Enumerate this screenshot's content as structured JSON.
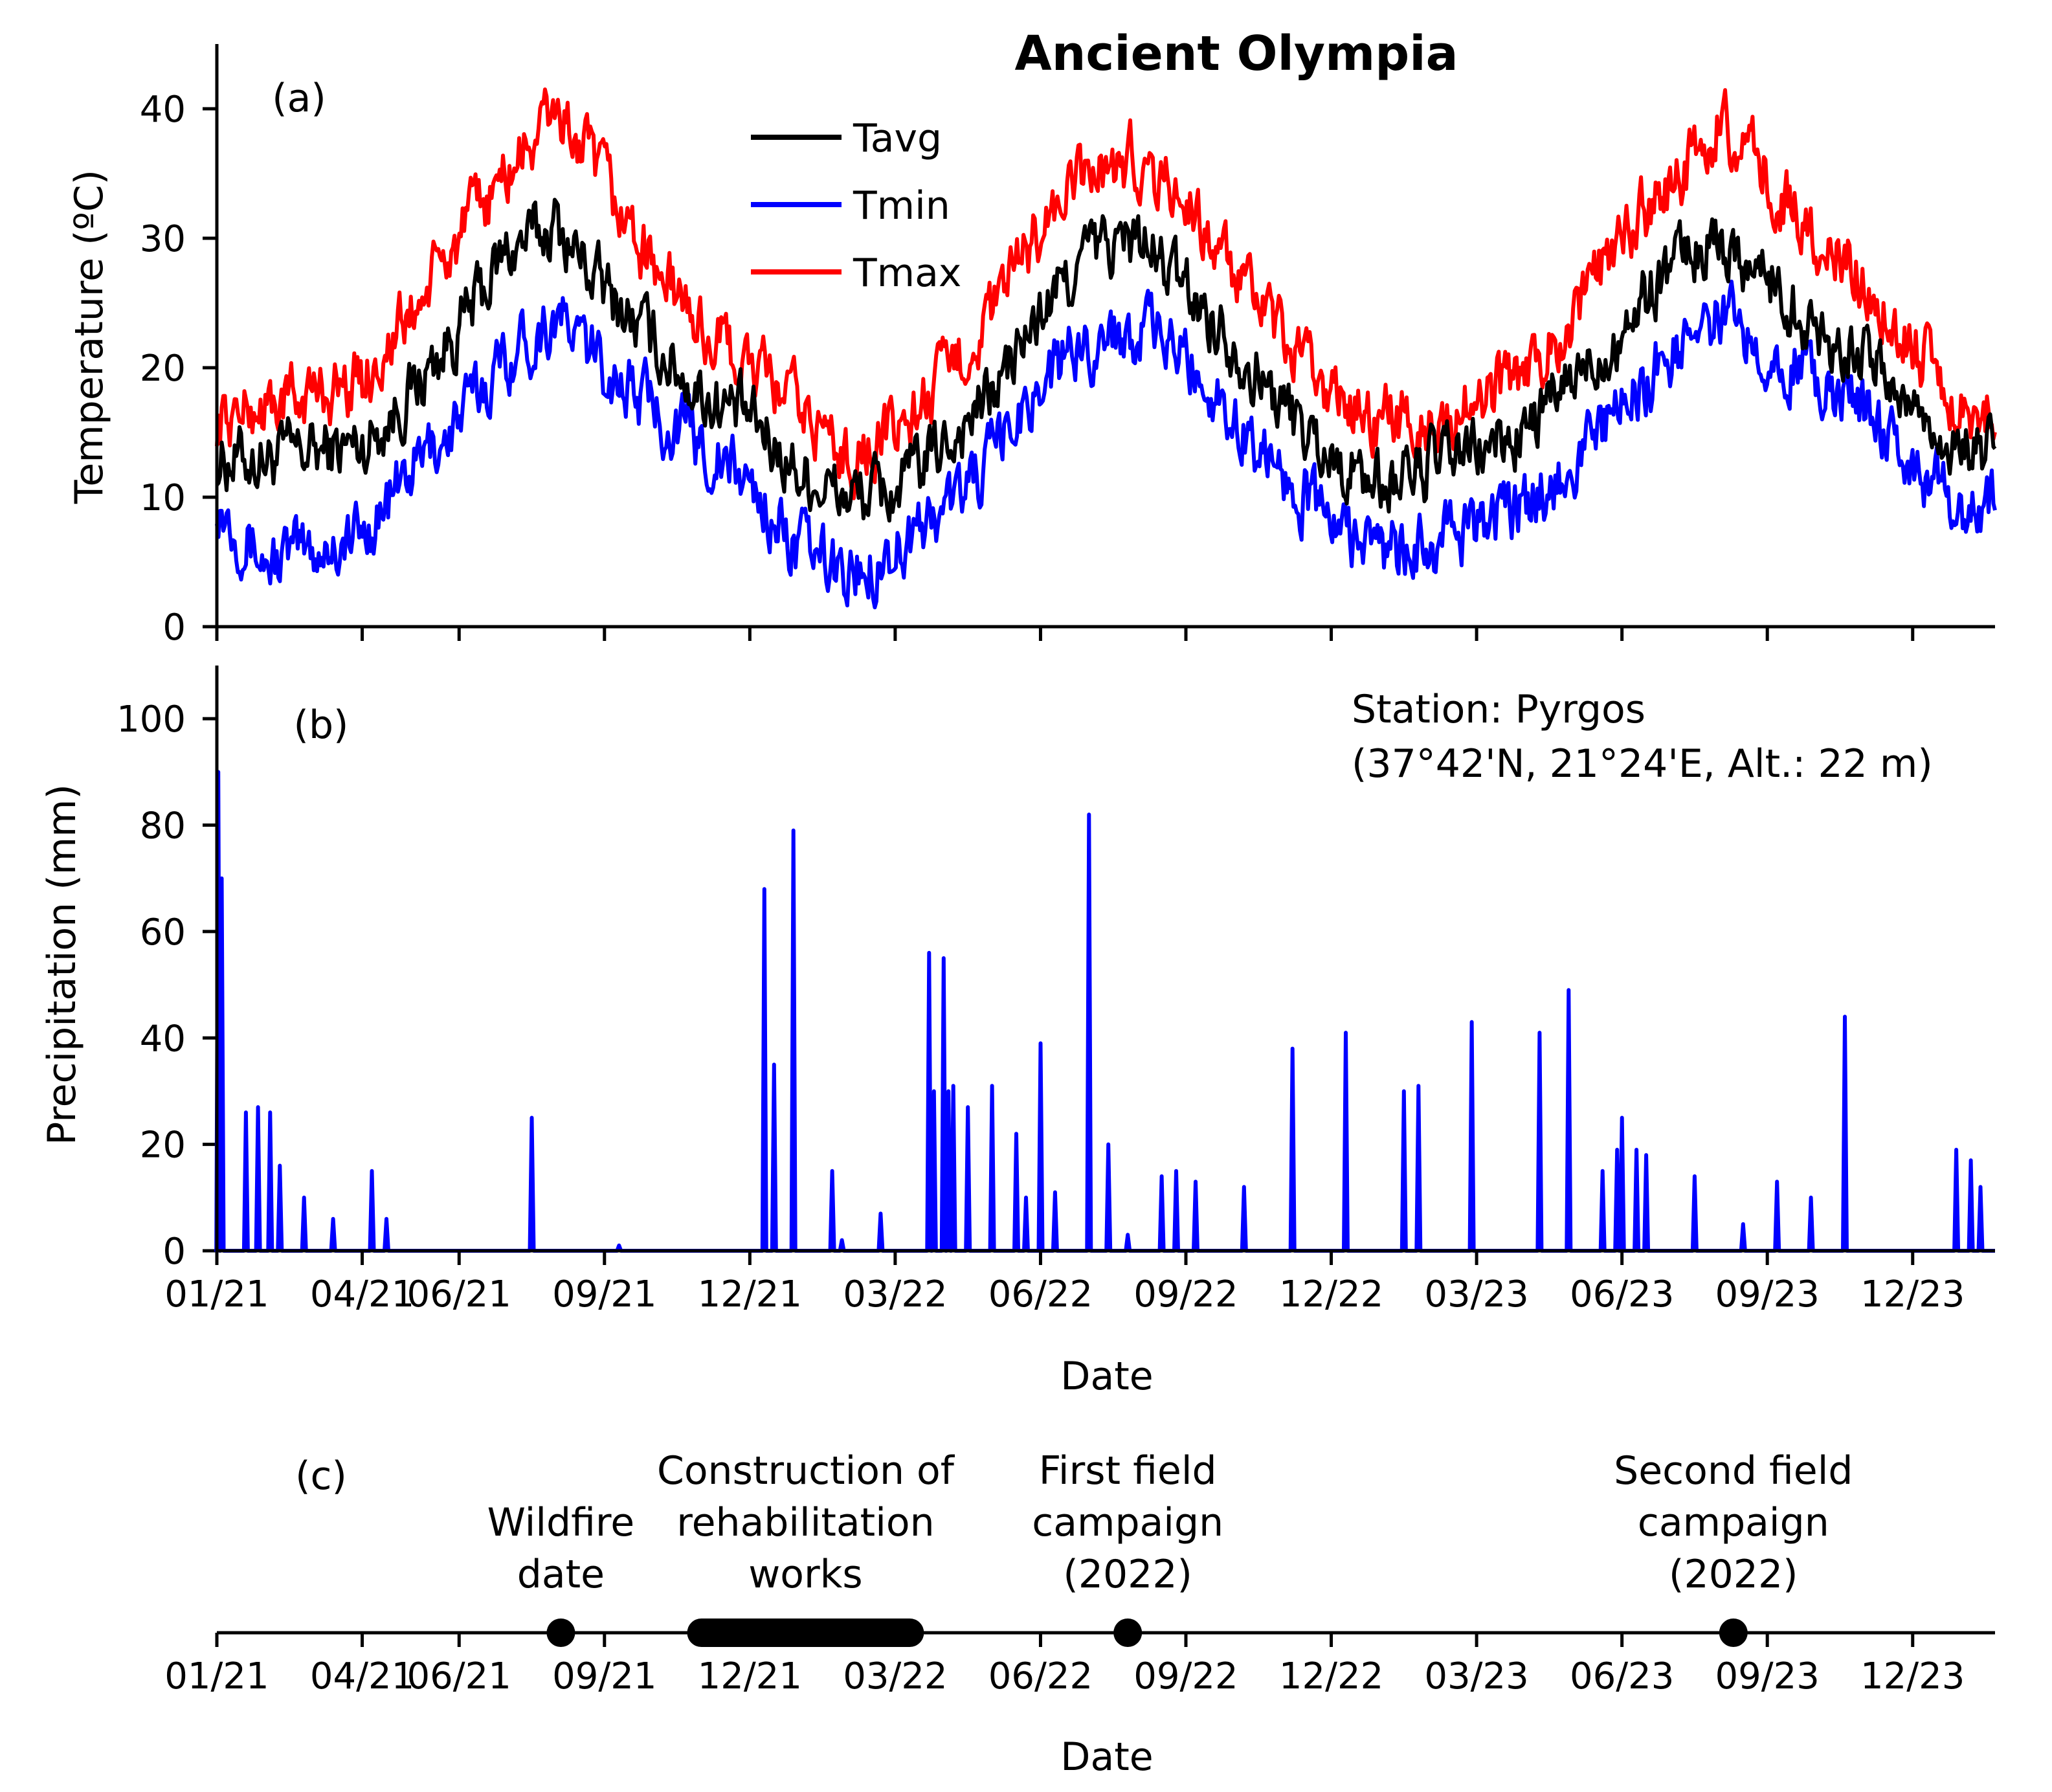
{
  "chart_data": [
    {
      "panel": "(a)",
      "type": "line",
      "title": "Ancient Olympia",
      "xlabel": "",
      "ylabel": "Temperature (ºC)",
      "ylim": [
        0,
        45
      ],
      "yticks": [
        0,
        10,
        20,
        30,
        40
      ],
      "xlim": [
        0,
        36.7
      ],
      "legend_position": "top-center",
      "series": [
        {
          "name": "Tavg",
          "color": "#000000",
          "months": [
            0,
            1,
            2,
            3,
            4,
            5,
            6,
            7,
            8,
            9,
            10,
            11,
            12,
            13,
            14,
            15,
            16,
            17,
            18,
            19,
            20,
            21,
            22,
            23,
            24,
            25,
            26,
            27,
            28,
            29,
            30,
            31,
            32,
            33,
            34,
            35,
            36
          ],
          "values": [
            13,
            13,
            13.5,
            14,
            18,
            23,
            29,
            31,
            26,
            22,
            18,
            16,
            12,
            10,
            10.5,
            14,
            18,
            24,
            29,
            30,
            26,
            22,
            17,
            13,
            11,
            12.5,
            13.5,
            15,
            19,
            23,
            28,
            30,
            27,
            23,
            21,
            17,
            13.5
          ]
        },
        {
          "name": "Tmin",
          "color": "#0000ff",
          "months": [
            0,
            1,
            2,
            3,
            4,
            5,
            6,
            7,
            8,
            9,
            10,
            11,
            12,
            13,
            14,
            15,
            16,
            17,
            18,
            19,
            20,
            21,
            22,
            23,
            24,
            25,
            26,
            27,
            28,
            29,
            30,
            31,
            32,
            33,
            34,
            35,
            36
          ],
          "values": [
            10,
            5,
            6,
            7,
            12,
            16,
            21,
            24,
            20,
            17,
            14,
            11,
            6,
            4,
            6,
            9,
            13,
            19,
            22,
            23,
            21,
            16,
            12,
            8,
            6,
            6,
            8,
            9,
            13,
            17,
            21,
            24,
            22,
            19,
            17,
            12,
            9
          ]
        },
        {
          "name": "Tmax",
          "color": "#ff0000",
          "months": [
            0,
            1,
            2,
            3,
            4,
            5,
            6,
            7,
            8,
            9,
            10,
            11,
            12,
            13,
            14,
            15,
            16,
            17,
            18,
            19,
            20,
            21,
            22,
            23,
            24,
            25,
            26,
            27,
            28,
            29,
            30,
            31,
            32,
            33,
            34,
            35,
            36
          ],
          "values": [
            16,
            17,
            18,
            19,
            24,
            30,
            35,
            40,
            34,
            28,
            23,
            20,
            17,
            13,
            15,
            19,
            24,
            31,
            35,
            36,
            33,
            27,
            22,
            18,
            16,
            16,
            17,
            20,
            24,
            30,
            34,
            39,
            35,
            30,
            27,
            22,
            17
          ]
        }
      ]
    },
    {
      "panel": "(b)",
      "type": "line",
      "xlabel": "Date",
      "ylabel": "Precipitation (mm)",
      "ylim": [
        0,
        110
      ],
      "yticks": [
        0,
        20,
        40,
        60,
        80,
        100
      ],
      "xlim": [
        0,
        36.7
      ],
      "series": [
        {
          "name": "Precipitation",
          "color": "#0000ff",
          "months": [
            0.03,
            0.1,
            0.6,
            0.85,
            1.1,
            1.3,
            1.8,
            2.4,
            3.2,
            3.5,
            6.5,
            8.3,
            11.3,
            11.5,
            11.9,
            12.7,
            12.9,
            13.7,
            14.7,
            14.8,
            15.0,
            15.1,
            15.2,
            15.5,
            16.0,
            16.5,
            16.7,
            17.0,
            17.3,
            18.0,
            18.4,
            18.8,
            19.5,
            19.8,
            20.2,
            21.2,
            22.2,
            23.3,
            24.5,
            24.8,
            25.9,
            27.3,
            27.9,
            28.6,
            28.9,
            29.0,
            29.3,
            29.5,
            30.5,
            31.5,
            32.2,
            32.9,
            33.6,
            35.9,
            36.2,
            36.4
          ],
          "values": [
            90,
            70,
            26,
            27,
            26,
            16,
            10,
            6,
            15,
            6,
            25,
            1,
            68,
            35,
            79,
            15,
            2,
            7,
            56,
            30,
            55,
            30,
            31,
            27,
            31,
            22,
            10,
            39,
            11,
            82,
            20,
            3,
            14,
            15,
            13,
            12,
            38,
            41,
            30,
            31,
            43,
            41,
            49,
            15,
            19,
            25,
            19,
            18,
            14,
            5,
            13,
            10,
            44,
            19,
            17,
            12
          ]
        }
      ]
    },
    {
      "panel": "(c)",
      "type": "timeline",
      "xlabel": "Date",
      "events": [
        {
          "label_line1": "Wildfire",
          "label_line2": "date",
          "label_line3": "",
          "start": 7.1,
          "end": 7.1
        },
        {
          "label_line1": "Construction of",
          "label_line2": "rehabilitation",
          "label_line3": "works",
          "start": 10.0,
          "end": 14.3
        },
        {
          "label_line1": "First field",
          "label_line2": "campaign",
          "label_line3": "(2022)",
          "start": 18.8,
          "end": 18.8
        },
        {
          "label_line1": "Second field",
          "label_line2": "campaign",
          "label_line3": "(2022)",
          "start": 31.3,
          "end": 31.3
        }
      ]
    }
  ],
  "x_tick_labels": [
    "01/21",
    "04/21",
    "06/21",
    "09/21",
    "12/21",
    "03/22",
    "06/22",
    "09/22",
    "12/22",
    "03/23",
    "06/23",
    "09/23",
    "12/23"
  ],
  "station": {
    "line1": "Station: Pyrgos",
    "line2": "(37°42'N, 21°24'E, Alt.: 22 m)"
  },
  "colors": {
    "tavg": "#000000",
    "tmin": "#0000ff",
    "tmax": "#ff0000",
    "precip": "#0000ff"
  }
}
